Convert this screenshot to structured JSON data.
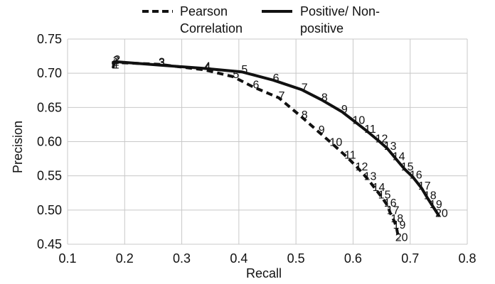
{
  "chart_data": {
    "type": "line",
    "xlabel": "Recall",
    "ylabel": "Precision",
    "xlim": [
      0.1,
      0.8
    ],
    "ylim": [
      0.45,
      0.75
    ],
    "x_ticks": [
      "0.1",
      "0.2",
      "0.3",
      "0.4",
      "0.5",
      "0.6",
      "0.7",
      "0.8"
    ],
    "y_ticks": [
      "0.45",
      "0.50",
      "0.55",
      "0.60",
      "0.65",
      "0.70",
      "0.75"
    ],
    "grid": true,
    "legend_position": "top",
    "series": [
      {
        "name": "Pearson Correlation",
        "legend_lines": [
          "Pearson",
          "Correlation"
        ],
        "style": "dashed",
        "color": "#111111",
        "points": [
          {
            "label": "1",
            "x": 0.18,
            "y": 0.713
          },
          {
            "label": "2",
            "x": 0.18,
            "y": 0.716
          },
          {
            "label": "3",
            "x": 0.26,
            "y": 0.713
          },
          {
            "label": "4",
            "x": 0.34,
            "y": 0.705
          },
          {
            "label": "5",
            "x": 0.39,
            "y": 0.695
          },
          {
            "label": "6",
            "x": 0.425,
            "y": 0.68
          },
          {
            "label": "7",
            "x": 0.47,
            "y": 0.664
          },
          {
            "label": "8",
            "x": 0.51,
            "y": 0.636
          },
          {
            "label": "9",
            "x": 0.54,
            "y": 0.614
          },
          {
            "label": "10",
            "x": 0.565,
            "y": 0.596
          },
          {
            "label": "11",
            "x": 0.59,
            "y": 0.577
          },
          {
            "label": "12",
            "x": 0.61,
            "y": 0.56
          },
          {
            "label": "13",
            "x": 0.625,
            "y": 0.546
          },
          {
            "label": "14",
            "x": 0.64,
            "y": 0.53
          },
          {
            "label": "15",
            "x": 0.65,
            "y": 0.519
          },
          {
            "label": "16",
            "x": 0.66,
            "y": 0.507
          },
          {
            "label": "17",
            "x": 0.665,
            "y": 0.496
          },
          {
            "label": "18",
            "x": 0.672,
            "y": 0.484
          },
          {
            "label": "19",
            "x": 0.676,
            "y": 0.475
          },
          {
            "label": "20",
            "x": 0.68,
            "y": 0.457
          }
        ]
      },
      {
        "name": "Positive/ Non-positive",
        "legend_lines": [
          "Positive/ Non-",
          "positive"
        ],
        "style": "solid",
        "color": "#111111",
        "points": [
          {
            "label": "1",
            "x": 0.18,
            "y": 0.709
          },
          {
            "label": "2",
            "x": 0.182,
            "y": 0.717
          },
          {
            "label": "3",
            "x": 0.26,
            "y": 0.712
          },
          {
            "label": "4",
            "x": 0.34,
            "y": 0.707
          },
          {
            "label": "5",
            "x": 0.405,
            "y": 0.702
          },
          {
            "label": "6",
            "x": 0.46,
            "y": 0.69
          },
          {
            "label": "7",
            "x": 0.51,
            "y": 0.676
          },
          {
            "label": "8",
            "x": 0.545,
            "y": 0.661
          },
          {
            "label": "9",
            "x": 0.58,
            "y": 0.644
          },
          {
            "label": "10",
            "x": 0.605,
            "y": 0.628
          },
          {
            "label": "11",
            "x": 0.625,
            "y": 0.615
          },
          {
            "label": "12",
            "x": 0.645,
            "y": 0.601
          },
          {
            "label": "13",
            "x": 0.66,
            "y": 0.59
          },
          {
            "label": "14",
            "x": 0.675,
            "y": 0.575
          },
          {
            "label": "15",
            "x": 0.69,
            "y": 0.56
          },
          {
            "label": "16",
            "x": 0.705,
            "y": 0.548
          },
          {
            "label": "17",
            "x": 0.72,
            "y": 0.532
          },
          {
            "label": "18",
            "x": 0.73,
            "y": 0.518
          },
          {
            "label": "19",
            "x": 0.74,
            "y": 0.505
          },
          {
            "label": "20",
            "x": 0.75,
            "y": 0.492
          }
        ]
      }
    ]
  }
}
